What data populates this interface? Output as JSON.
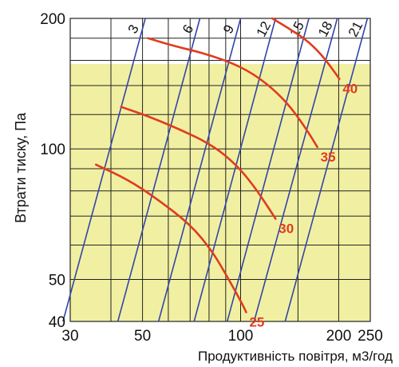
{
  "chart_data": {
    "type": "line",
    "xlabel": "Продуктивність повітря, м3/год",
    "ylabel": "Втрати тиску, Па",
    "x_scale": "log",
    "y_scale": "log",
    "xlim": [
      30,
      250
    ],
    "ylim": [
      40,
      200
    ],
    "x_ticks": [
      {
        "value": 30,
        "label": "30"
      },
      {
        "value": 50,
        "label": "50"
      },
      {
        "value": 100,
        "label": "100"
      },
      {
        "value": 200,
        "label": "200"
      },
      {
        "value": 250,
        "label": "250"
      }
    ],
    "y_ticks": [
      {
        "value": 40,
        "label": "40"
      },
      {
        "value": 50,
        "label": "50"
      },
      {
        "value": 100,
        "label": "100"
      },
      {
        "value": 200,
        "label": "200"
      }
    ],
    "highlight_band": {
      "color": "#f1f0a2",
      "y_max": 157
    },
    "grid": true,
    "grid_color": "#222222",
    "speed_lines": {
      "color": "#3344aa",
      "lines": [
        {
          "label": "3",
          "x_at_ymax": 51,
          "x_at_ymin": 28.5
        },
        {
          "label": "6",
          "x_at_ymax": 75,
          "x_at_ymin": 42
        },
        {
          "label": "9",
          "x_at_ymax": 100,
          "x_at_ymin": 56
        },
        {
          "label": "12",
          "x_at_ymax": 128,
          "x_at_ymin": 72
        },
        {
          "label": "15",
          "x_at_ymax": 162,
          "x_at_ymin": 91
        },
        {
          "label": "18",
          "x_at_ymax": 198,
          "x_at_ymin": 110
        },
        {
          "label": "21",
          "x_at_ymax": 245,
          "x_at_ymin": 137
        }
      ]
    },
    "series": [
      {
        "name": "25",
        "color": "#e03c1f",
        "points": [
          [
            36,
            92
          ],
          [
            45,
            85
          ],
          [
            55,
            77
          ],
          [
            70,
            67
          ],
          [
            82,
            58
          ],
          [
            92,
            50
          ],
          [
            101,
            44
          ],
          [
            104,
            42
          ]
        ]
      },
      {
        "name": "30",
        "color": "#e03c1f",
        "points": [
          [
            43,
            125
          ],
          [
            52,
            119
          ],
          [
            65,
            111
          ],
          [
            82,
            102
          ],
          [
            97,
            92
          ],
          [
            110,
            82
          ],
          [
            122,
            73
          ],
          [
            128,
            69
          ]
        ]
      },
      {
        "name": "35",
        "color": "#e03c1f",
        "points": [
          [
            52,
            180
          ],
          [
            62,
            173
          ],
          [
            80,
            165
          ],
          [
            100,
            155
          ],
          [
            120,
            142
          ],
          [
            140,
            127
          ],
          [
            158,
            112
          ],
          [
            172,
            101
          ]
        ]
      },
      {
        "name": "40",
        "color": "#e03c1f",
        "points": [
          [
            125,
            200
          ],
          [
            140,
            190
          ],
          [
            160,
            178
          ],
          [
            177,
            165
          ],
          [
            190,
            154
          ],
          [
            201,
            145
          ]
        ]
      }
    ]
  }
}
